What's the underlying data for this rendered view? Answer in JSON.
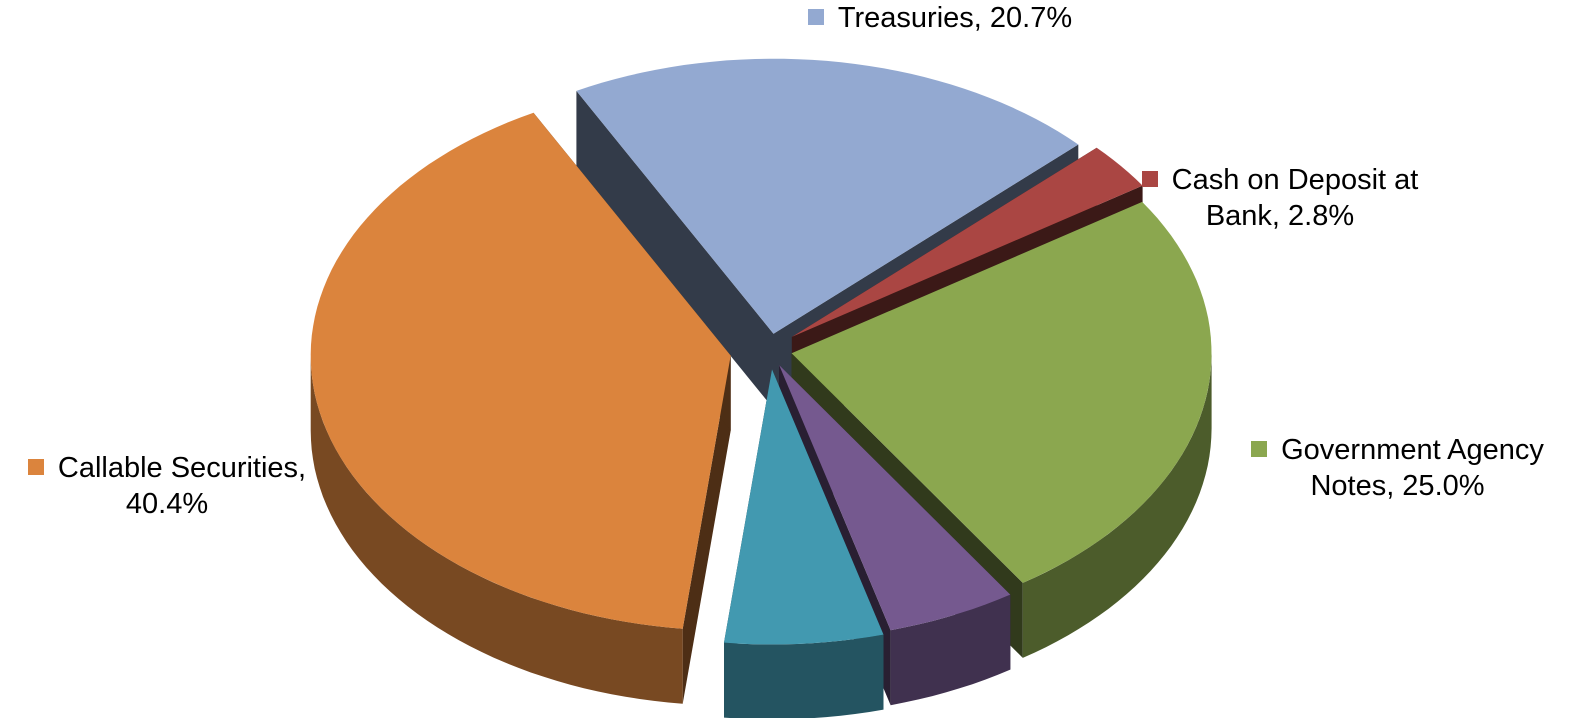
{
  "chart_data": {
    "type": "pie3d",
    "values": [
      20.7,
      2.8,
      25.0,
      5.0,
      6.1,
      40.4
    ],
    "value_labels": [
      "Treasuries, 20.7%",
      "Cash on Deposit at Bank, 2.8%",
      "Government Agency Notes, 25.0%",
      null,
      null,
      "Callable Securities, 40.4%"
    ],
    "colors": [
      "#93a9d1",
      "#aa4643",
      "#8ba74f",
      "#75598f",
      "#4299b0",
      "#db843d"
    ]
  }
}
